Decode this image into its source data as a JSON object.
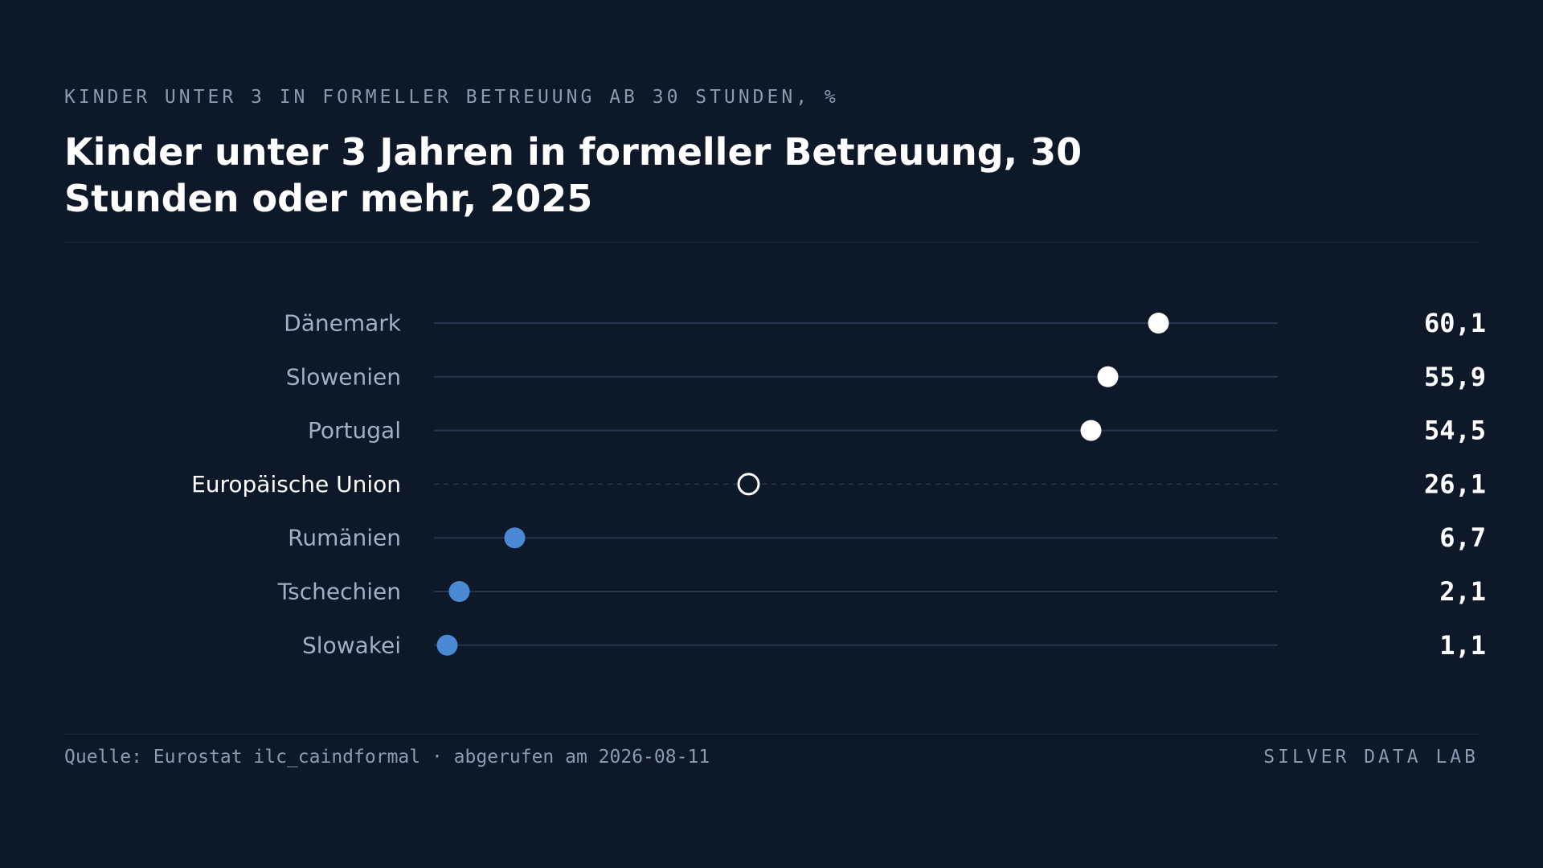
{
  "header": {
    "kicker": "KINDER UNTER 3 IN FORMELLER BETREUUNG AB 30 STUNDEN, %",
    "title": "Kinder unter 3 Jahren in formeller Betreuung, 30 Stunden oder mehr, 2025"
  },
  "footer": {
    "source": "Quelle: Eurostat ilc_caindformal · abgerufen am 2026-08-11",
    "brand": "SILVER DATA LAB"
  },
  "colors": {
    "background": "#0d1829",
    "high": "#ffffff",
    "low": "#4a8ad4",
    "reference": "#ffffff",
    "track": "#24364d",
    "label": "#9fb0c6",
    "label_reference": "#ffffff",
    "value": "#ffffff"
  },
  "chart_data": {
    "type": "dot",
    "xlim": [
      0,
      70
    ],
    "grid": false,
    "categories": [
      "Dänemark",
      "Slowenien",
      "Portugal",
      "Europäische Union",
      "Rumänien",
      "Tschechien",
      "Slowakei"
    ],
    "values": [
      60.1,
      55.9,
      54.5,
      26.1,
      6.7,
      2.1,
      1.1
    ],
    "value_labels": [
      "60,1",
      "55,9",
      "54,5",
      "26,1",
      "6,7",
      "2,1",
      "1,1"
    ],
    "groups": [
      "high",
      "high",
      "high",
      "reference",
      "low",
      "low",
      "low"
    ]
  }
}
